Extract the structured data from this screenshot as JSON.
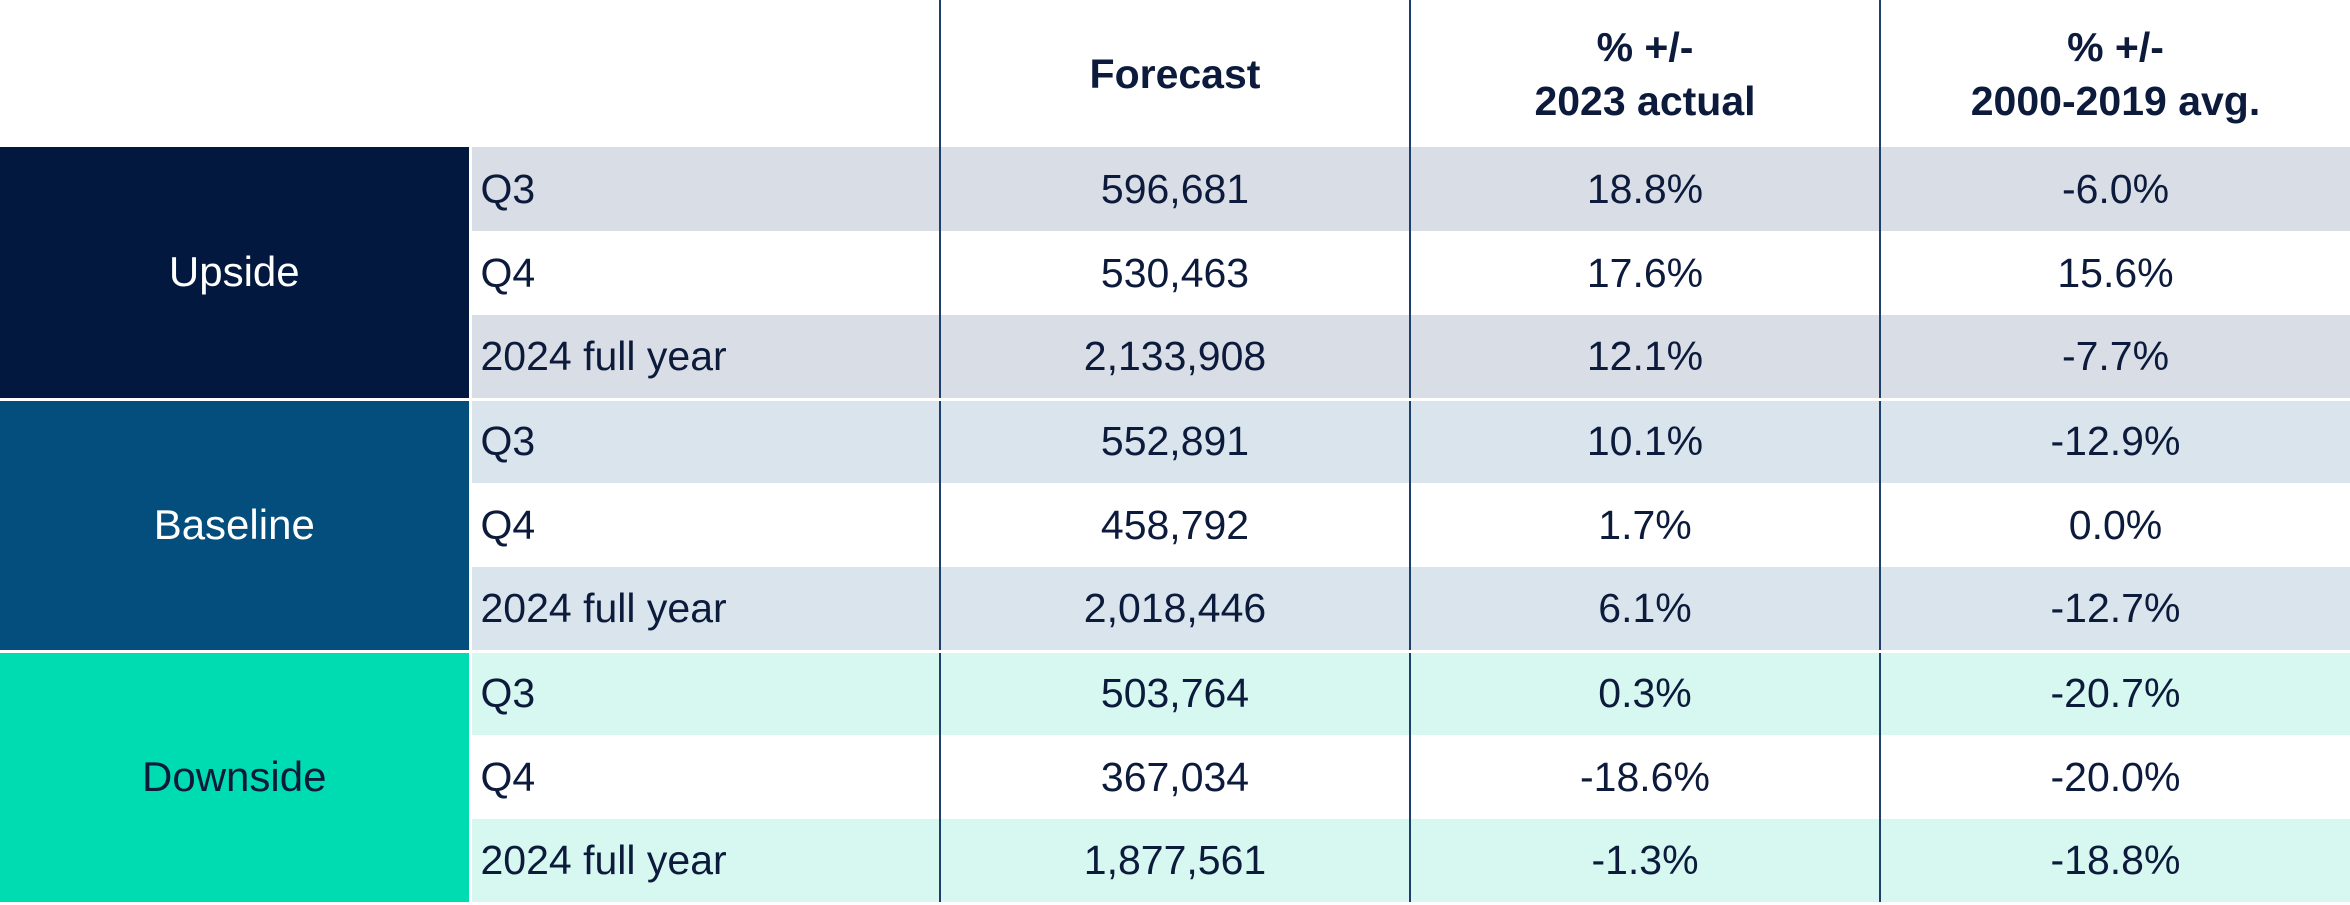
{
  "chart_data": {
    "type": "table",
    "columns": [
      "",
      "",
      "Forecast",
      "% +/-\n2023 actual",
      "% +/-\n2000-2019 avg."
    ],
    "header": {
      "forecast": "Forecast",
      "vs_2023_line1": "% +/-",
      "vs_2023_line2": "2023 actual",
      "vs_avg_line1": "% +/-",
      "vs_avg_line2": "2000-2019 avg."
    },
    "scenarios": [
      {
        "name": "Upside",
        "color": "#03183f",
        "text_color": "#ffffff",
        "shade": "#d9dde5",
        "rows": [
          {
            "period": "Q3",
            "forecast": "596,681",
            "vs_2023": "18.8%",
            "vs_avg": "-6.0%"
          },
          {
            "period": "Q4",
            "forecast": "530,463",
            "vs_2023": "17.6%",
            "vs_avg": "15.6%"
          },
          {
            "period": "2024 full year",
            "forecast": "2,133,908",
            "vs_2023": "12.1%",
            "vs_avg": "-7.7%"
          }
        ]
      },
      {
        "name": "Baseline",
        "color": "#034e7c",
        "text_color": "#ffffff",
        "shade": "#d9e4ec",
        "rows": [
          {
            "period": "Q3",
            "forecast": "552,891",
            "vs_2023": "10.1%",
            "vs_avg": "-12.9%"
          },
          {
            "period": "Q4",
            "forecast": "458,792",
            "vs_2023": "1.7%",
            "vs_avg": "0.0%"
          },
          {
            "period": "2024 full year",
            "forecast": "2,018,446",
            "vs_2023": "6.1%",
            "vs_avg": "-12.7%"
          }
        ]
      },
      {
        "name": "Downside",
        "color": "#00dcb1",
        "text_color": "#0c1b3c",
        "shade": "#d6f8f0",
        "rows": [
          {
            "period": "Q3",
            "forecast": "503,764",
            "vs_2023": "0.3%",
            "vs_avg": "-20.7%"
          },
          {
            "period": "Q4",
            "forecast": "367,034",
            "vs_2023": "-18.6%",
            "vs_avg": "-20.0%"
          },
          {
            "period": "2024 full year",
            "forecast": "1,877,561",
            "vs_2023": "-1.3%",
            "vs_avg": "-18.8%"
          }
        ]
      }
    ]
  }
}
